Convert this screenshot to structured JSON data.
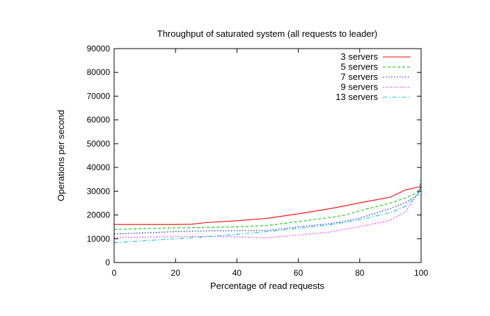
{
  "chart_data": {
    "type": "line",
    "title": "Throughput of saturated system (all requests to leader)",
    "xlabel": "Percentage of read requests",
    "ylabel": "Operations per second",
    "xlim": [
      0,
      100
    ],
    "ylim": [
      0,
      90000
    ],
    "xticks": [
      0,
      20,
      40,
      60,
      80,
      100
    ],
    "yticks": [
      0,
      10000,
      20000,
      30000,
      40000,
      50000,
      60000,
      70000,
      80000,
      90000
    ],
    "grid": false,
    "legend_position": "top-right",
    "series": [
      {
        "name": "3 servers",
        "color": "#ff0000",
        "dash": "solid",
        "x": [
          0,
          10,
          20,
          25,
          30,
          40,
          50,
          60,
          70,
          75,
          80,
          90,
          95,
          99,
          100
        ],
        "y": [
          16000,
          16000,
          16000,
          16100,
          16800,
          17600,
          18600,
          20500,
          22600,
          23800,
          25100,
          27500,
          30600,
          31700,
          32000
        ]
      },
      {
        "name": "5 servers",
        "color": "#00cc00",
        "dash": "dashed",
        "x": [
          0,
          10,
          20,
          30,
          40,
          50,
          60,
          70,
          75,
          80,
          90,
          95,
          99,
          100
        ],
        "y": [
          13900,
          14300,
          14600,
          14800,
          15000,
          15600,
          17200,
          18900,
          19900,
          21800,
          25000,
          27200,
          29500,
          31500
        ]
      },
      {
        "name": "7 servers",
        "color": "#0000ff",
        "dash": "dotted",
        "x": [
          0,
          10,
          20,
          30,
          40,
          50,
          60,
          70,
          75,
          80,
          90,
          95,
          99,
          100
        ],
        "y": [
          12000,
          12500,
          13000,
          13300,
          13400,
          13500,
          15000,
          16300,
          17300,
          18700,
          22700,
          25300,
          28500,
          32500
        ]
      },
      {
        "name": "9 servers",
        "color": "#ff00ff",
        "dash": "dotted",
        "x": [
          0,
          10,
          20,
          30,
          40,
          50,
          60,
          70,
          80,
          90,
          95,
          99,
          100
        ],
        "y": [
          10500,
          10700,
          10900,
          11000,
          10800,
          10400,
          11600,
          12800,
          15100,
          17800,
          21500,
          29000,
          33000
        ]
      },
      {
        "name": "13 servers",
        "color": "#00cccc",
        "dash": "dashdot",
        "x": [
          0,
          10,
          20,
          30,
          40,
          50,
          60,
          70,
          80,
          90,
          95,
          99,
          100
        ],
        "y": [
          8300,
          9200,
          10000,
          10800,
          11900,
          13000,
          14400,
          15800,
          18000,
          21000,
          23800,
          28500,
          36000
        ]
      }
    ]
  }
}
